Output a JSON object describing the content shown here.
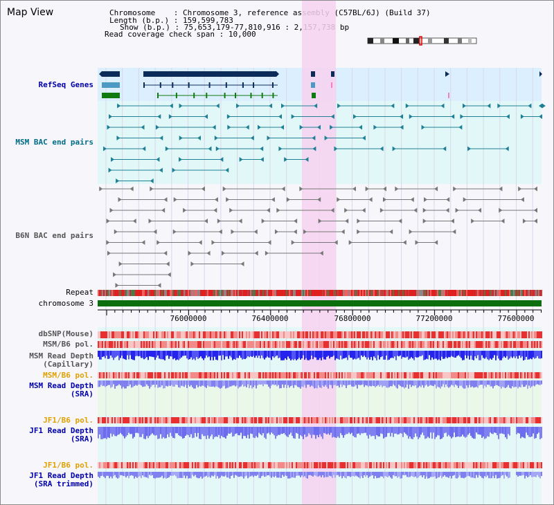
{
  "page": {
    "title": "Map View"
  },
  "header": {
    "lines": [
      {
        "key": "Chromosome",
        "sep": ":",
        "value": "Chromosome 3, reference assembly (C57BL/6J) (Build 37)"
      },
      {
        "key": "Length (b.p.)",
        "sep": ":",
        "value": "159,599,783"
      },
      {
        "key": "Show (b.p.)",
        "sep": ":",
        "value": "75,653,179-77,810,916 : 2,157,738 bp"
      },
      {
        "key": "Read coverage check span",
        "sep": ":",
        "value": "10,000"
      }
    ]
  },
  "tracks": {
    "refseq": "RefSeq Genes",
    "msm_bac": "MSM BAC end pairs",
    "b6n_bac": "B6N BAC end pairs",
    "repeat": "Repeat",
    "chromosome": "chromosome 3",
    "dbsnp": "dbSNP(Mouse)",
    "msm_b6_pol_1": "MSM/B6 pol.",
    "msm_depth_cap_1": "MSM Read Depth",
    "msm_depth_cap_2": "(Capillary)",
    "msm_b6_pol_2": "MSM/B6 pol.",
    "msm_depth_sra_1": "MSM Read Depth",
    "msm_depth_sra_2": "(SRA)",
    "jf1_b6_pol_1": "JF1/B6 pol.",
    "jf1_depth_sra_1": "JF1 Read Depth",
    "jf1_depth_sra_2": "(SRA)",
    "jf1_b6_pol_2": "JF1/B6 pol.",
    "jf1_depth_trim_1": "JF1 Read Depth",
    "jf1_depth_trim_2": "(SRA trimmed)"
  },
  "axis": {
    "ticks": [
      "76000000",
      "76400000",
      "76800000",
      "77200000",
      "77600000"
    ]
  },
  "colors": {
    "highlight": "#f7d2f0",
    "refseq_bg": "#dcefff",
    "gene_dark": "#0b2c5a",
    "gene_mid": "#4b9ac6",
    "gene_green": "#0f7a0f",
    "bac_msm": "#1f7f95",
    "bac_b6n": "#777777",
    "chromosome": "#0d6e0d",
    "depth_blue": "#2424ee",
    "depth_light": "#8080f0",
    "pol_red": "#f0a0a0"
  }
}
